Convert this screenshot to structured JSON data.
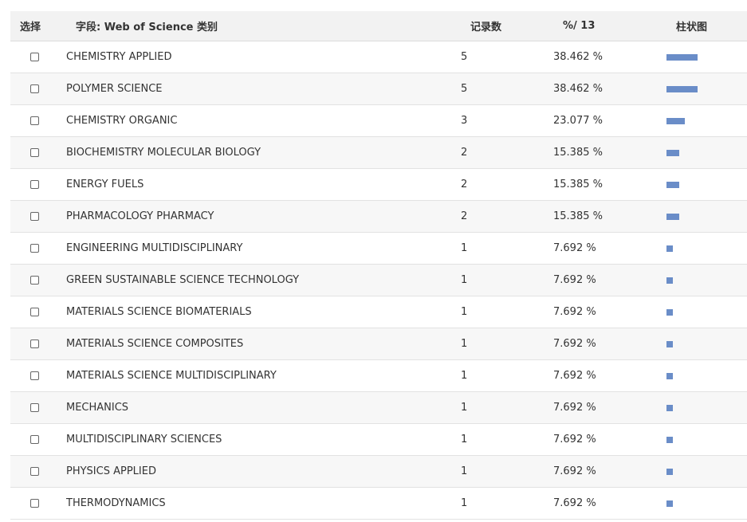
{
  "header": {
    "select": "选择",
    "field": "字段: Web of Science 类别",
    "count": "记录数",
    "percent": "%/ 13",
    "bar": "柱状图"
  },
  "bar_color": "#6a8dc8",
  "rows": [
    {
      "field": "CHEMISTRY APPLIED",
      "count": "5",
      "percent": "38.462 %",
      "pct": 38.462
    },
    {
      "field": "POLYMER SCIENCE",
      "count": "5",
      "percent": "38.462 %",
      "pct": 38.462
    },
    {
      "field": "CHEMISTRY ORGANIC",
      "count": "3",
      "percent": "23.077 %",
      "pct": 23.077
    },
    {
      "field": "BIOCHEMISTRY MOLECULAR BIOLOGY",
      "count": "2",
      "percent": "15.385 %",
      "pct": 15.385
    },
    {
      "field": "ENERGY FUELS",
      "count": "2",
      "percent": "15.385 %",
      "pct": 15.385
    },
    {
      "field": "PHARMACOLOGY PHARMACY",
      "count": "2",
      "percent": "15.385 %",
      "pct": 15.385
    },
    {
      "field": "ENGINEERING MULTIDISCIPLINARY",
      "count": "1",
      "percent": "7.692 %",
      "pct": 7.692
    },
    {
      "field": "GREEN SUSTAINABLE SCIENCE TECHNOLOGY",
      "count": "1",
      "percent": "7.692 %",
      "pct": 7.692
    },
    {
      "field": "MATERIALS SCIENCE BIOMATERIALS",
      "count": "1",
      "percent": "7.692 %",
      "pct": 7.692
    },
    {
      "field": "MATERIALS SCIENCE COMPOSITES",
      "count": "1",
      "percent": "7.692 %",
      "pct": 7.692
    },
    {
      "field": "MATERIALS SCIENCE MULTIDISCIPLINARY",
      "count": "1",
      "percent": "7.692 %",
      "pct": 7.692
    },
    {
      "field": "MECHANICS",
      "count": "1",
      "percent": "7.692 %",
      "pct": 7.692
    },
    {
      "field": "MULTIDISCIPLINARY SCIENCES",
      "count": "1",
      "percent": "7.692 %",
      "pct": 7.692
    },
    {
      "field": "PHYSICS APPLIED",
      "count": "1",
      "percent": "7.692 %",
      "pct": 7.692
    },
    {
      "field": "THERMODYNAMICS",
      "count": "1",
      "percent": "7.692 %",
      "pct": 7.692
    }
  ]
}
